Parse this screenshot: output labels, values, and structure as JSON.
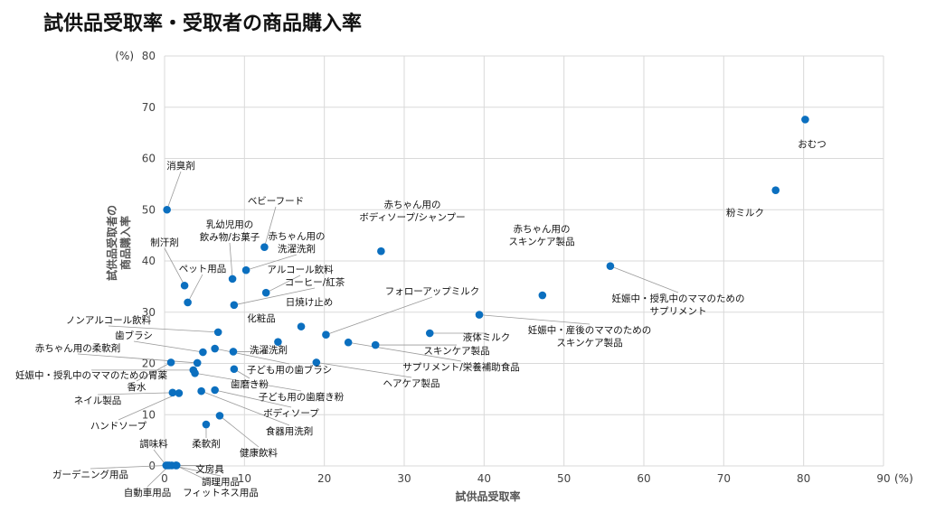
{
  "page": {
    "title": "試供品受取率・受取者の商品購入率"
  },
  "colors": {
    "point": "#0b6fbf",
    "grid": "#d9d9d9",
    "leader": "#9a9a9a"
  },
  "chart_data": {
    "type": "scatter",
    "title": "試供品受取率・受取者の商品購入率",
    "xlabel": "試供品受取率",
    "ylabel_lines": [
      "試供品受取者の",
      "商品購入率"
    ],
    "x_unit": "(%)",
    "y_unit": "(%)",
    "xlim": [
      0,
      90
    ],
    "ylim": [
      0,
      80
    ],
    "x_ticks": [
      0,
      10,
      20,
      30,
      40,
      50,
      60,
      70,
      80,
      90
    ],
    "y_ticks": [
      0,
      10,
      20,
      30,
      40,
      50,
      60,
      70,
      80
    ],
    "grid": true,
    "legend": "none",
    "points": [
      {
        "label": "おむつ",
        "x": 80.2,
        "y": 67.6
      },
      {
        "label": "粉ミルク",
        "x": 76.5,
        "y": 53.8
      },
      {
        "label": "妊娠中・授乳中のママのための\nサプリメント",
        "x": 55.8,
        "y": 39.0
      },
      {
        "label": "赤ちゃん用の\nスキンケア製品",
        "x": 47.3,
        "y": 33.3
      },
      {
        "label": "妊娠中・産後のママのための\nスキンケア製品",
        "x": 39.4,
        "y": 29.5
      },
      {
        "label": "液体ミルク",
        "x": 33.2,
        "y": 25.9
      },
      {
        "label": "赤ちゃん用の\nボディソープ/シャンプー",
        "x": 27.1,
        "y": 41.9
      },
      {
        "label": "フォローアップミルク",
        "x": 20.2,
        "y": 25.6
      },
      {
        "label": "スキンケア製品",
        "x": 26.4,
        "y": 23.6
      },
      {
        "label": "サプリメント/栄養補助食品",
        "x": 23.0,
        "y": 24.1
      },
      {
        "label": "ヘアケア製品",
        "x": 19.0,
        "y": 20.2
      },
      {
        "label": "日焼け止め",
        "x": 17.1,
        "y": 27.2
      },
      {
        "label": "化粧品",
        "x": 14.2,
        "y": 24.2
      },
      {
        "label": "ベビーフード",
        "x": 12.5,
        "y": 42.7
      },
      {
        "label": "赤ちゃん用の\n洗濯洗剤",
        "x": 10.2,
        "y": 38.2
      },
      {
        "label": "アルコール飲料",
        "x": 12.7,
        "y": 33.8
      },
      {
        "label": "乳幼児用の\n飲み物/お菓子",
        "x": 8.5,
        "y": 36.5
      },
      {
        "label": "コーヒー/紅茶",
        "x": 8.7,
        "y": 31.4
      },
      {
        "label": "消臭剤",
        "x": 0.3,
        "y": 50.0
      },
      {
        "label": "制汗剤",
        "x": 2.5,
        "y": 35.2
      },
      {
        "label": "ペット用品",
        "x": 2.9,
        "y": 31.9
      },
      {
        "label": "ノンアルコール飲料",
        "x": 6.7,
        "y": 26.1
      },
      {
        "label": "歯ブラシ",
        "x": 4.8,
        "y": 22.2
      },
      {
        "label": "洗濯洗剤",
        "x": 8.6,
        "y": 22.3
      },
      {
        "label": "子ども用の歯ブラシ",
        "x": 6.3,
        "y": 22.9
      },
      {
        "label": "赤ちゃん用の柔軟剤",
        "x": 4.1,
        "y": 20.1
      },
      {
        "label": "歯磨き粉",
        "x": 8.7,
        "y": 18.9
      },
      {
        "label": "妊娠中・授乳中のママのための胃薬",
        "x": 3.6,
        "y": 18.7
      },
      {
        "label": "子ども用の歯磨き粉",
        "x": 3.8,
        "y": 18.1
      },
      {
        "label": "香水",
        "x": 0.8,
        "y": 20.2
      },
      {
        "label": "ネイル製品",
        "x": 1.0,
        "y": 14.3
      },
      {
        "label": "ボディソープ",
        "x": 6.3,
        "y": 14.8
      },
      {
        "label": "ハンドソープ",
        "x": 1.8,
        "y": 14.2
      },
      {
        "label": "食器用洗剤",
        "x": 4.6,
        "y": 14.6
      },
      {
        "label": "調味料",
        "x": 0.2,
        "y": 0.1
      },
      {
        "label": "健康飲料",
        "x": 6.9,
        "y": 9.8
      },
      {
        "label": "柔軟剤",
        "x": 5.2,
        "y": 8.1
      },
      {
        "label": "文房具",
        "x": 1.5,
        "y": 0.1
      },
      {
        "label": "ガーデニング用品",
        "x": 0.4,
        "y": 0.1
      },
      {
        "label": "調理用品",
        "x": 0.9,
        "y": 0.1
      },
      {
        "label": "自動車用品",
        "x": 0.6,
        "y": 0.1
      },
      {
        "label": "フィットネス用品",
        "x": 1.4,
        "y": 0.1
      }
    ]
  }
}
